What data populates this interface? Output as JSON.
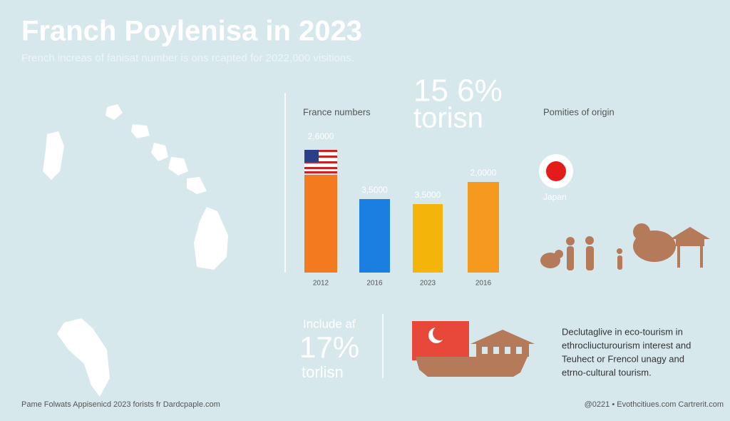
{
  "header": {
    "title": "Franch Poylenisa in 2023",
    "subtitle": "French increas of fanisat number is ons rcapted for 2022,000 visitions."
  },
  "chart_data": {
    "type": "bar",
    "title": "France numbers",
    "categories": [
      "2012",
      "2016",
      "2023",
      "2016"
    ],
    "values": [
      137,
      103,
      96,
      127
    ],
    "annotations": [
      "2,6000",
      "3,5000",
      "3,5000",
      "2,0000"
    ],
    "colors": [
      "#f47a20",
      "#1a7fe0",
      "#f5b40a",
      "#f59a1e"
    ]
  },
  "stat1": {
    "value": "15 6%",
    "label": "torisn"
  },
  "origin": {
    "title": "Pomities of origin",
    "country": "Japan"
  },
  "stat2": {
    "intro": "Include af",
    "value": "17%",
    "label": "torlisn"
  },
  "description": [
    "Declutaglive in eco-tourism in",
    "ethrocliucturourism interest and",
    "Teuhect or Frencol unagy and",
    "etrno-cultural tourism."
  ],
  "footer": {
    "left": "Pame Folwats Appisenicd 2023 forists fr Dardcpaple.com",
    "right": "@0221 • Evothcitiues.com Cartrerit.com"
  }
}
